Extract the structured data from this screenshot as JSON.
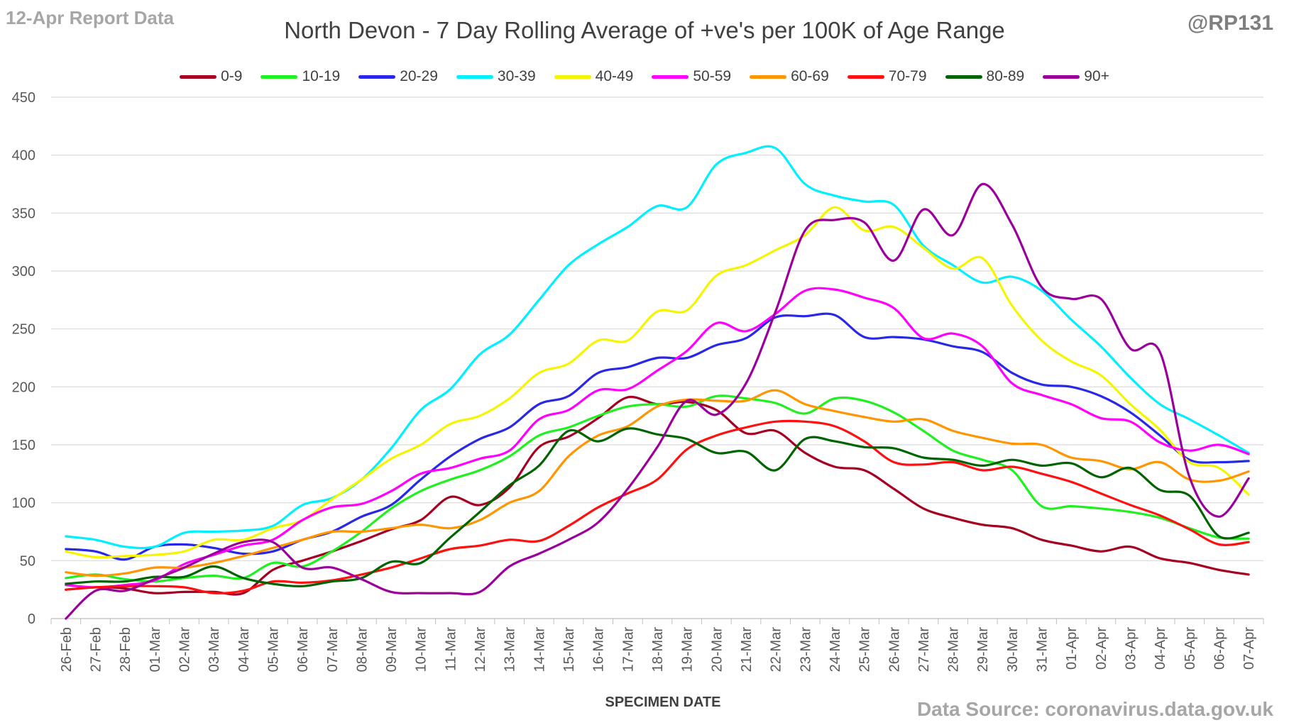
{
  "header": {
    "report_label": "12-Apr Report Data",
    "handle": "@RP131",
    "source": "Data Source: coronavirus.data.gov.uk"
  },
  "chart_data": {
    "type": "line",
    "title": "North Devon - 7 Day Rolling Average of +ve's per 100K of Age Range",
    "xlabel": "SPECIMEN DATE",
    "ylabel": "",
    "ylim": [
      0,
      450
    ],
    "yticks": [
      0,
      50,
      100,
      150,
      200,
      250,
      300,
      350,
      400,
      450
    ],
    "grid": true,
    "legend_position": "top",
    "categories": [
      "26-Feb",
      "27-Feb",
      "28-Feb",
      "01-Mar",
      "02-Mar",
      "03-Mar",
      "04-Mar",
      "05-Mar",
      "06-Mar",
      "07-Mar",
      "08-Mar",
      "09-Mar",
      "10-Mar",
      "11-Mar",
      "12-Mar",
      "13-Mar",
      "14-Mar",
      "15-Mar",
      "16-Mar",
      "17-Mar",
      "18-Mar",
      "19-Mar",
      "20-Mar",
      "21-Mar",
      "22-Mar",
      "23-Mar",
      "24-Mar",
      "25-Mar",
      "26-Mar",
      "27-Mar",
      "28-Mar",
      "29-Mar",
      "30-Mar",
      "31-Mar",
      "01-Apr",
      "02-Apr",
      "03-Apr",
      "04-Apr",
      "05-Apr",
      "06-Apr",
      "07-Apr"
    ],
    "series": [
      {
        "name": "0-9",
        "color": "#a50021",
        "values": [
          25,
          27,
          26,
          22,
          23,
          23,
          22,
          42,
          50,
          58,
          67,
          77,
          85,
          105,
          98,
          113,
          148,
          157,
          173,
          191,
          185,
          187,
          180,
          160,
          162,
          143,
          131,
          128,
          112,
          95,
          87,
          81,
          78,
          68,
          63,
          58,
          62,
          52,
          48,
          42,
          38
        ]
      },
      {
        "name": "10-19",
        "color": "#1ff01f",
        "values": [
          35,
          38,
          34,
          32,
          35,
          37,
          35,
          48,
          45,
          58,
          75,
          95,
          110,
          120,
          128,
          140,
          158,
          165,
          175,
          183,
          185,
          183,
          192,
          190,
          186,
          177,
          190,
          188,
          178,
          162,
          145,
          137,
          128,
          97,
          97,
          95,
          92,
          87,
          78,
          70,
          69
        ]
      },
      {
        "name": "20-29",
        "color": "#2828e6",
        "values": [
          60,
          58,
          51,
          62,
          64,
          61,
          56,
          58,
          68,
          75,
          88,
          98,
          120,
          140,
          155,
          165,
          185,
          192,
          212,
          217,
          225,
          225,
          236,
          242,
          260,
          261,
          262,
          243,
          243,
          241,
          235,
          230,
          212,
          202,
          200,
          192,
          178,
          158,
          137,
          135,
          136
        ]
      },
      {
        "name": "30-39",
        "color": "#00f0ff",
        "values": [
          71,
          68,
          62,
          62,
          74,
          75,
          76,
          80,
          98,
          104,
          120,
          147,
          180,
          198,
          228,
          245,
          275,
          305,
          323,
          338,
          356,
          355,
          392,
          402,
          406,
          375,
          365,
          360,
          357,
          322,
          305,
          290,
          295,
          283,
          258,
          235,
          208,
          185,
          172,
          158,
          143
        ]
      },
      {
        "name": "40-49",
        "color": "#f5f500",
        "values": [
          58,
          53,
          54,
          55,
          58,
          68,
          68,
          78,
          85,
          103,
          120,
          138,
          150,
          168,
          175,
          190,
          212,
          220,
          240,
          240,
          265,
          266,
          296,
          305,
          318,
          331,
          355,
          335,
          338,
          320,
          302,
          311,
          270,
          240,
          222,
          210,
          185,
          163,
          135,
          130,
          107
        ]
      },
      {
        "name": "50-59",
        "color": "#ff00ff",
        "values": [
          29,
          27,
          29,
          33,
          47,
          55,
          63,
          68,
          85,
          96,
          99,
          110,
          125,
          130,
          138,
          145,
          172,
          180,
          197,
          198,
          214,
          231,
          255,
          248,
          263,
          283,
          284,
          277,
          268,
          242,
          246,
          235,
          203,
          193,
          185,
          173,
          170,
          152,
          145,
          150,
          142
        ]
      },
      {
        "name": "60-69",
        "color": "#ff9500",
        "values": [
          40,
          37,
          39,
          44,
          44,
          48,
          54,
          61,
          68,
          75,
          75,
          78,
          81,
          78,
          85,
          100,
          110,
          140,
          158,
          166,
          183,
          189,
          188,
          188,
          197,
          185,
          179,
          174,
          170,
          172,
          162,
          156,
          151,
          150,
          139,
          136,
          129,
          135,
          120,
          119,
          127
        ]
      },
      {
        "name": "70-79",
        "color": "#ff1010",
        "values": [
          25,
          27,
          28,
          28,
          27,
          22,
          24,
          32,
          31,
          33,
          38,
          44,
          52,
          60,
          63,
          68,
          67,
          80,
          96,
          108,
          120,
          146,
          158,
          165,
          170,
          170,
          166,
          153,
          135,
          133,
          135,
          128,
          131,
          125,
          118,
          108,
          98,
          89,
          77,
          64,
          66
        ]
      },
      {
        "name": "80-89",
        "color": "#006400",
        "values": [
          30,
          32,
          32,
          36,
          36,
          45,
          35,
          30,
          28,
          32,
          35,
          49,
          48,
          70,
          92,
          115,
          132,
          162,
          153,
          164,
          159,
          155,
          143,
          144,
          128,
          155,
          153,
          148,
          147,
          139,
          137,
          132,
          137,
          132,
          134,
          122,
          130,
          111,
          106,
          71,
          74
        ]
      },
      {
        "name": "90+",
        "color": "#9b009b",
        "values": [
          0,
          24,
          24,
          34,
          44,
          56,
          66,
          66,
          44,
          44,
          34,
          23,
          22,
          22,
          23,
          45,
          56,
          68,
          83,
          112,
          148,
          188,
          176,
          203,
          265,
          335,
          344,
          342,
          309,
          353,
          331,
          375,
          340,
          286,
          276,
          276,
          233,
          230,
          122,
          88,
          121
        ]
      }
    ]
  }
}
